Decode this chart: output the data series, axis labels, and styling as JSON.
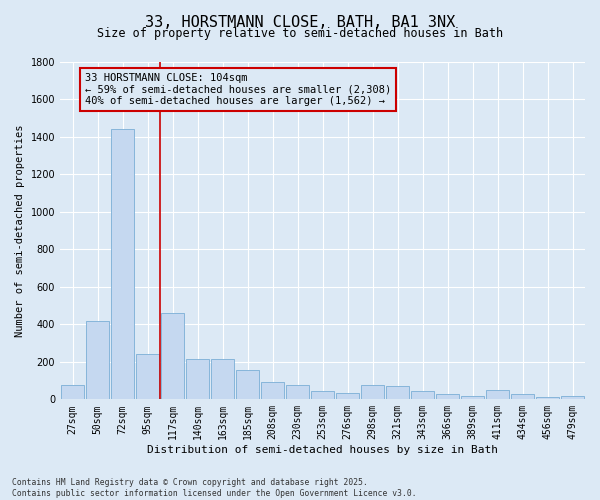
{
  "title": "33, HORSTMANN CLOSE, BATH, BA1 3NX",
  "subtitle": "Size of property relative to semi-detached houses in Bath",
  "xlabel": "Distribution of semi-detached houses by size in Bath",
  "ylabel": "Number of semi-detached properties",
  "categories": [
    "27sqm",
    "50sqm",
    "72sqm",
    "95sqm",
    "117sqm",
    "140sqm",
    "163sqm",
    "185sqm",
    "208sqm",
    "230sqm",
    "253sqm",
    "276sqm",
    "298sqm",
    "321sqm",
    "343sqm",
    "366sqm",
    "389sqm",
    "411sqm",
    "434sqm",
    "456sqm",
    "479sqm"
  ],
  "values": [
    75,
    415,
    1440,
    240,
    460,
    215,
    215,
    155,
    90,
    75,
    45,
    35,
    75,
    70,
    45,
    30,
    20,
    50,
    30,
    10,
    20
  ],
  "bar_color": "#c5d8f0",
  "bar_edge_color": "#7aaed6",
  "vline_x": 3.5,
  "vline_color": "#cc0000",
  "annotation_text": "33 HORSTMANN CLOSE: 104sqm\n← 59% of semi-detached houses are smaller (2,308)\n40% of semi-detached houses are larger (1,562) →",
  "annotation_box_color": "#cc0000",
  "annotation_bg": "#dce9f5",
  "ylim": [
    0,
    1800
  ],
  "yticks": [
    0,
    200,
    400,
    600,
    800,
    1000,
    1200,
    1400,
    1600,
    1800
  ],
  "footnote": "Contains HM Land Registry data © Crown copyright and database right 2025.\nContains public sector information licensed under the Open Government Licence v3.0.",
  "bg_color": "#dce9f5",
  "grid_color": "#ffffff",
  "title_fontsize": 11,
  "subtitle_fontsize": 8.5,
  "xlabel_fontsize": 8,
  "ylabel_fontsize": 7.5,
  "tick_fontsize": 7,
  "annotation_fontsize": 7.5,
  "footnote_fontsize": 5.8
}
